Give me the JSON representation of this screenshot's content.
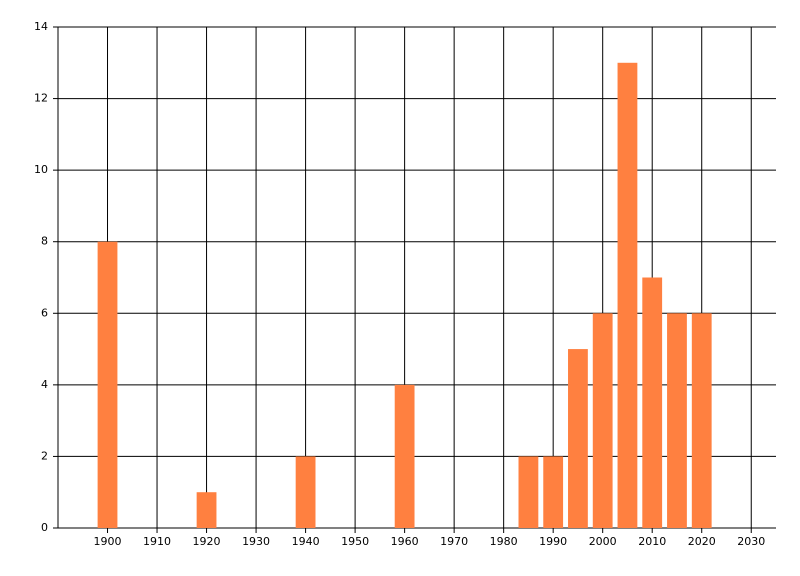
{
  "chart_data": {
    "type": "bar",
    "x": [
      1900,
      1920,
      1940,
      1960,
      1985,
      1990,
      1995,
      2000,
      2005,
      2010,
      2015,
      2020
    ],
    "values": [
      8,
      1,
      2,
      4,
      2,
      2,
      5,
      6,
      13,
      7,
      6,
      6
    ],
    "color": "#ff8040",
    "xlim": [
      1890,
      2035
    ],
    "xticks": [
      1900,
      1910,
      1920,
      1930,
      1940,
      1950,
      1960,
      1970,
      1980,
      1990,
      2000,
      2010,
      2020,
      2030
    ],
    "ylim": [
      0,
      14
    ],
    "yticks": [
      0,
      2,
      4,
      6,
      8,
      10,
      12,
      14
    ],
    "grid": true
  }
}
